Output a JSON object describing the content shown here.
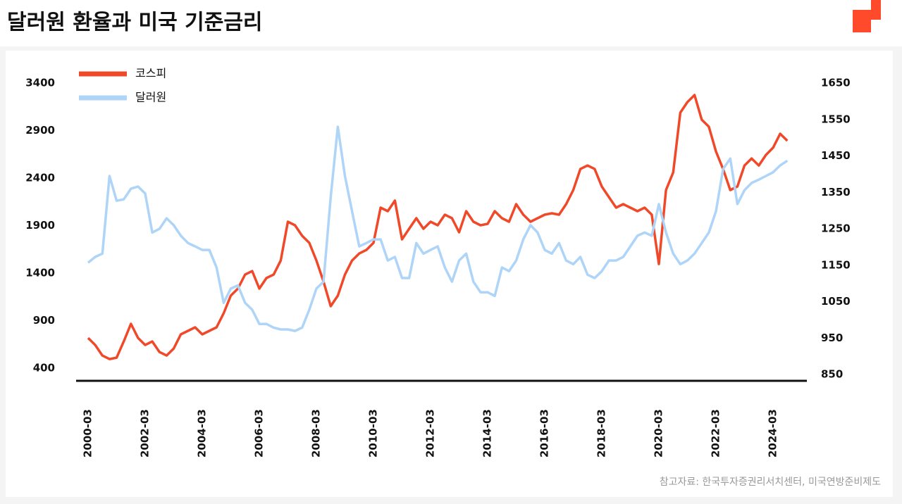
{
  "chart_data": {
    "type": "line",
    "title": "달러원 환율과 미국 기준금리",
    "source": "참고자료: 한국투자증권리서치센터, 미국연방준비제도",
    "legend": "upper left",
    "x": [
      "2000-03",
      "2000-06",
      "2000-09",
      "2000-12",
      "2001-03",
      "2001-06",
      "2001-09",
      "2001-12",
      "2002-03",
      "2002-06",
      "2002-09",
      "2002-12",
      "2003-03",
      "2003-06",
      "2003-09",
      "2003-12",
      "2004-03",
      "2004-06",
      "2004-09",
      "2004-12",
      "2005-03",
      "2005-06",
      "2005-09",
      "2005-12",
      "2006-03",
      "2006-06",
      "2006-09",
      "2006-12",
      "2007-03",
      "2007-06",
      "2007-09",
      "2007-12",
      "2008-03",
      "2008-06",
      "2008-09",
      "2008-12",
      "2009-03",
      "2009-06",
      "2009-09",
      "2009-12",
      "2010-03",
      "2010-06",
      "2010-09",
      "2010-12",
      "2011-03",
      "2011-06",
      "2011-09",
      "2011-12",
      "2012-03",
      "2012-06",
      "2012-09",
      "2012-12",
      "2013-03",
      "2013-06",
      "2013-09",
      "2013-12",
      "2014-03",
      "2014-06",
      "2014-09",
      "2014-12",
      "2015-03",
      "2015-06",
      "2015-09",
      "2015-12",
      "2016-03",
      "2016-06",
      "2016-09",
      "2016-12",
      "2017-03",
      "2017-06",
      "2017-09",
      "2017-12",
      "2018-03",
      "2018-06",
      "2018-09",
      "2018-12",
      "2019-03",
      "2019-06",
      "2019-09",
      "2019-12",
      "2020-03",
      "2020-06",
      "2020-09",
      "2020-12",
      "2021-03",
      "2021-06",
      "2021-09",
      "2021-12",
      "2022-03",
      "2022-06",
      "2022-09",
      "2022-12",
      "2023-03",
      "2023-06",
      "2023-09",
      "2023-12",
      "2024-03",
      "2024-06",
      "2024-09"
    ],
    "series": [
      {
        "name": "코스피",
        "color": "#f0492a",
        "axis": "y",
        "values": [
          718,
          644,
          533,
          496,
          511,
          681,
          867,
          718,
          644,
          681,
          570,
          533,
          607,
          756,
          793,
          830,
          756,
          793,
          830,
          978,
          1163,
          1237,
          1385,
          1422,
          1237,
          1348,
          1385,
          1533,
          1941,
          1904,
          1793,
          1719,
          1533,
          1311,
          1052,
          1163,
          1385,
          1533,
          1607,
          1644,
          1719,
          2089,
          2052,
          2163,
          1756,
          1867,
          1978,
          1867,
          1941,
          1904,
          2015,
          1978,
          1830,
          2052,
          1941,
          1904,
          1919,
          2052,
          1978,
          1941,
          2126,
          2015,
          1941,
          1978,
          2015,
          2030,
          2015,
          2126,
          2274,
          2496,
          2533,
          2496,
          2311,
          2200,
          2089,
          2126,
          2089,
          2052,
          2089,
          2015,
          1496,
          2274,
          2459,
          3089,
          3200,
          3274,
          3015,
          2941,
          2681,
          2496,
          2274,
          2311,
          2533,
          2607,
          2533,
          2644,
          2719,
          2867,
          2793
        ]
      },
      {
        "name": "달러원",
        "color": "#aed4f8",
        "axis": "y2",
        "values": [
          1157,
          1173,
          1182,
          1395,
          1327,
          1331,
          1360,
          1366,
          1347,
          1240,
          1250,
          1279,
          1260,
          1231,
          1211,
          1202,
          1192,
          1192,
          1144,
          1047,
          1086,
          1095,
          1047,
          1028,
          989,
          989,
          979,
          974,
          974,
          970,
          979,
          1028,
          1086,
          1105,
          1337,
          1530,
          1395,
          1298,
          1202,
          1211,
          1221,
          1221,
          1163,
          1173,
          1115,
          1115,
          1211,
          1182,
          1192,
          1202,
          1144,
          1105,
          1163,
          1182,
          1105,
          1076,
          1076,
          1066,
          1144,
          1134,
          1163,
          1221,
          1260,
          1240,
          1192,
          1182,
          1211,
          1163,
          1153,
          1173,
          1124,
          1115,
          1134,
          1163,
          1163,
          1173,
          1202,
          1231,
          1240,
          1231,
          1318,
          1240,
          1182,
          1153,
          1163,
          1182,
          1211,
          1240,
          1298,
          1414,
          1443,
          1318,
          1356,
          1376,
          1385,
          1395,
          1405,
          1424,
          1437
        ]
      }
    ],
    "ylim": [
      267,
      3400
    ],
    "yticks": [
      400,
      900,
      1400,
      1900,
      2400,
      2900,
      3400
    ],
    "y2lim": [
      833,
      1650
    ],
    "y2ticks": [
      850,
      950,
      1050,
      1150,
      1250,
      1350,
      1450,
      1550,
      1650
    ]
  }
}
